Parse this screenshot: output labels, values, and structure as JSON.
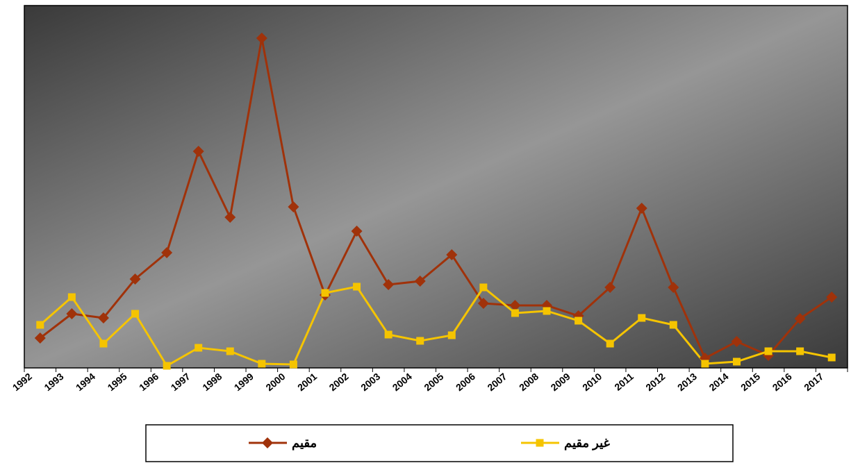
{
  "chart_data": {
    "type": "line",
    "categories": [
      "1992",
      "1993",
      "1994",
      "1995",
      "1996",
      "1997",
      "1998",
      "1999",
      "2000",
      "2001",
      "2002",
      "2003",
      "2004",
      "2005",
      "2006",
      "2007",
      "2008",
      "2009",
      "2010",
      "2011",
      "2012",
      "2013",
      "2014",
      "2015",
      "2016",
      "2017"
    ],
    "series": [
      {
        "name": "مقيم",
        "color": "#a0320a",
        "marker": "diamond",
        "values": [
          8.6,
          15.6,
          14.4,
          25.6,
          33.2,
          62.4,
          43.4,
          95,
          46.4,
          21,
          39.4,
          24,
          25,
          32.6,
          18.6,
          18,
          18,
          15,
          23.2,
          46,
          23.2,
          2.8,
          7.6,
          3.6,
          14.2,
          20.4
        ]
      },
      {
        "name": "غير مقيم",
        "color": "#f5c400",
        "marker": "square",
        "values": [
          12.4,
          20.4,
          7,
          15.6,
          0.6,
          5.8,
          4.8,
          1.2,
          1,
          21.6,
          23.4,
          9.6,
          7.8,
          9.4,
          23.2,
          15.8,
          16.4,
          13.6,
          7,
          14.4,
          12.4,
          1.2,
          1.8,
          4.8,
          4.8,
          3
        ]
      }
    ],
    "ylim": [
      0,
      104.4
    ]
  }
}
